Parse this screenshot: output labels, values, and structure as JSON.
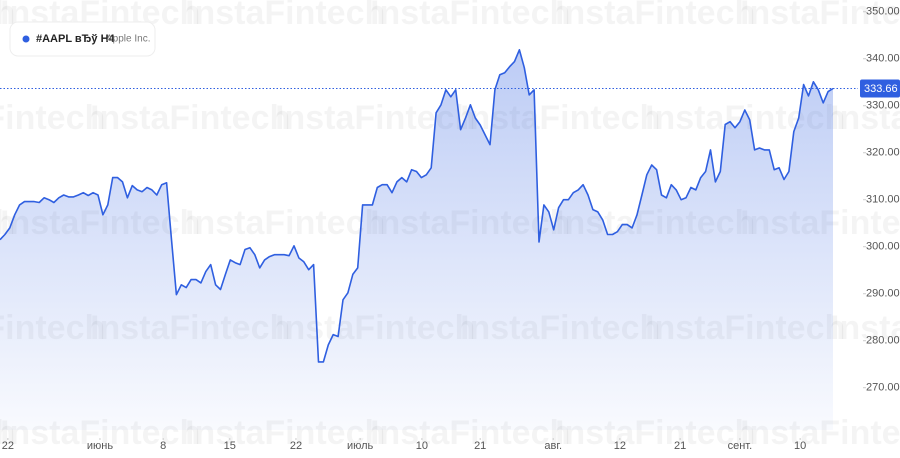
{
  "chart_data": {
    "type": "area",
    "watermark": "InstaFintech",
    "legend": {
      "symbol": "#AAPL вЂў H4",
      "description": "Apple Inc."
    },
    "color": "#2f5fe0",
    "series": [
      {
        "name": "#AAPL",
        "color": "#2f5fe0",
        "values": [
          301.5,
          302.6,
          304,
          306.8,
          308.9,
          309.6,
          309.6,
          309.6,
          309.4,
          310.4,
          310,
          309.4,
          310.4,
          311,
          310.6,
          310.6,
          311,
          311.5,
          310.9,
          311.5,
          311,
          306.8,
          308.9,
          314.7,
          314.7,
          313.8,
          310.4,
          313,
          312.1,
          311.7,
          312.6,
          312.1,
          311,
          313.2,
          313.6,
          301.5,
          289.8,
          291.9,
          291.3,
          293,
          293,
          292.3,
          294.7,
          296.2,
          291.9,
          290.9,
          294.1,
          297.2,
          296.6,
          296.2,
          299.4,
          299.8,
          298.3,
          295.5,
          297.2,
          297.9,
          298.3,
          298.3,
          298.3,
          298.1,
          300.2,
          297.6,
          296.8,
          295.1,
          296.2,
          275.5,
          275.5,
          279.1,
          281.3,
          280.9,
          288.7,
          290.2,
          294.1,
          295.5,
          308.9,
          308.9,
          308.9,
          312.6,
          313.2,
          313.2,
          311.5,
          313.8,
          314.7,
          313.8,
          316.4,
          316,
          314.7,
          315.3,
          316.8,
          328.5,
          330.2,
          333.4,
          331.9,
          333.4,
          324.9,
          327.4,
          330.2,
          327.4,
          325.9,
          323.8,
          321.7,
          333.4,
          336.6,
          337,
          338.3,
          339.4,
          341.9,
          338.1,
          332.3,
          333.4,
          301,
          308.9,
          307.4,
          303.6,
          308.3,
          310,
          310,
          311.5,
          312.1,
          313.2,
          311,
          307.9,
          307.4,
          305.7,
          302.6,
          302.6,
          303.2,
          304.7,
          304.7,
          304,
          306.8,
          311,
          315.3,
          317.4,
          316.4,
          311,
          310.4,
          313.2,
          312.1,
          310,
          310.4,
          312.6,
          312.1,
          314.7,
          316,
          320.6,
          313.8,
          316,
          326,
          326.6,
          325.3,
          326.6,
          329.1,
          327,
          320.6,
          321,
          320.6,
          320.6,
          316.4,
          316.8,
          314.3,
          316,
          324.5,
          327.4,
          334.5,
          332.1,
          335.1,
          333.4,
          330.6,
          333,
          333.66
        ]
      }
    ],
    "last_price": 333.66,
    "xlim": [
      0,
      170
    ],
    "xticks": [
      {
        "value": 1.6,
        "label": "22"
      },
      {
        "value": 20.4,
        "label": "июнь"
      },
      {
        "value": 33.3,
        "label": "8"
      },
      {
        "value": 46.9,
        "label": "15"
      },
      {
        "value": 60.4,
        "label": "22"
      },
      {
        "value": 73.5,
        "label": "июль"
      },
      {
        "value": 86.1,
        "label": "10"
      },
      {
        "value": 98,
        "label": "21"
      },
      {
        "value": 112.9,
        "label": "авг."
      },
      {
        "value": 126.5,
        "label": "12"
      },
      {
        "value": 138.8,
        "label": "21"
      },
      {
        "value": 151,
        "label": "сент."
      },
      {
        "value": 163.3,
        "label": "10"
      }
    ],
    "ylim": [
      261,
      352.5
    ],
    "yticks": [
      {
        "value": 270,
        "label": "270.00"
      },
      {
        "value": 280,
        "label": "280.00"
      },
      {
        "value": 290,
        "label": "290.00"
      },
      {
        "value": 300,
        "label": "300.00"
      },
      {
        "value": 310,
        "label": "310.00"
      },
      {
        "value": 320,
        "label": "320.00"
      },
      {
        "value": 330,
        "label": "330.00"
      },
      {
        "value": 340,
        "label": "340.00"
      },
      {
        "value": 350,
        "label": "350.00"
      }
    ]
  }
}
